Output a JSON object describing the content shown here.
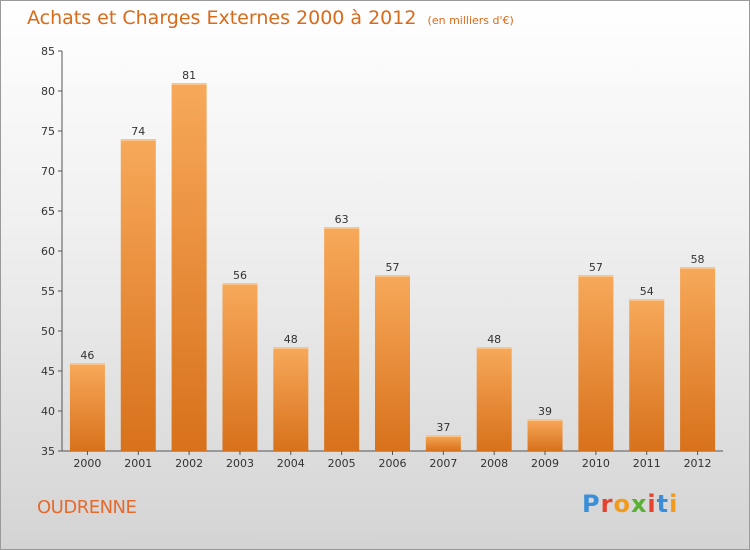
{
  "header": {
    "title": "Achats et Charges Externes 2000 à 2012",
    "subtitle": "(en milliers d'€)"
  },
  "footer": {
    "commune": "OUDRENNE",
    "logo_text": "Proxiti"
  },
  "colors": {
    "title": "#d96a1a",
    "bar_top": "#f7a95a",
    "bar_bottom": "#d8711b",
    "commune": "#e56a2e"
  },
  "chart_data": {
    "type": "bar",
    "title": "Achats et Charges Externes 2000 à 2012",
    "subtitle": "(en milliers d'€)",
    "xlabel": "",
    "ylabel": "",
    "categories": [
      "2000",
      "2001",
      "2002",
      "2003",
      "2004",
      "2005",
      "2006",
      "2007",
      "2008",
      "2009",
      "2010",
      "2011",
      "2012"
    ],
    "values": [
      46,
      74,
      81,
      56,
      48,
      63,
      57,
      37,
      48,
      39,
      57,
      54,
      58
    ],
    "ylim": [
      35,
      85
    ],
    "yticks": [
      35,
      40,
      45,
      50,
      55,
      60,
      65,
      70,
      75,
      80,
      85
    ],
    "grid": false,
    "data_labels": true
  }
}
